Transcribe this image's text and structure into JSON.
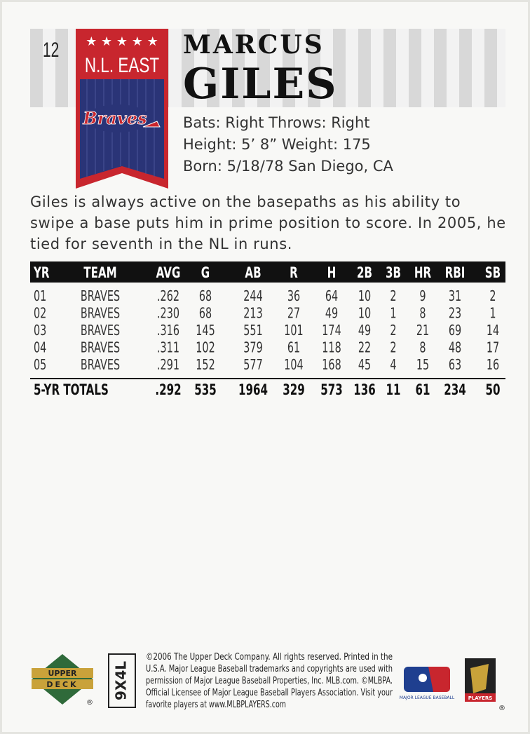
{
  "card_number": "12",
  "division": "N.L. EAST",
  "team_logo": "Braves",
  "player": {
    "first_name": "MARCUS",
    "last_name": "GILES"
  },
  "bio": [
    "Bats: Right  Throws: Right",
    "Height: 5’ 8” Weight: 175",
    "Born: 5/18/78 San Diego, CA"
  ],
  "blurb": "Giles is always active on the basepaths as his ability to swipe a base puts him in prime position to score. In 2005, he tied for seventh in the NL in runs.",
  "stats": {
    "headers": [
      "YR",
      "TEAM",
      "AVG",
      "G",
      "AB",
      "R",
      "H",
      "2B",
      "3B",
      "HR",
      "RBI",
      "SB"
    ],
    "rows": [
      [
        "01",
        "BRAVES",
        ".262",
        "68",
        "244",
        "36",
        "64",
        "10",
        "2",
        "9",
        "31",
        "2"
      ],
      [
        "02",
        "BRAVES",
        ".230",
        "68",
        "213",
        "27",
        "49",
        "10",
        "1",
        "8",
        "23",
        "1"
      ],
      [
        "03",
        "BRAVES",
        ".316",
        "145",
        "551",
        "101",
        "174",
        "49",
        "2",
        "21",
        "69",
        "14"
      ],
      [
        "04",
        "BRAVES",
        ".311",
        "102",
        "379",
        "61",
        "118",
        "22",
        "2",
        "8",
        "48",
        "17"
      ],
      [
        "05",
        "BRAVES",
        ".291",
        "152",
        "577",
        "104",
        "168",
        "45",
        "4",
        "15",
        "63",
        "16"
      ]
    ],
    "totals_label": "5-YR TOTALS",
    "totals": [
      ".292",
      "535",
      "1964",
      "329",
      "573",
      "136",
      "11",
      "61",
      "234",
      "50"
    ]
  },
  "footer": {
    "brand": [
      "UPPER",
      "DECK"
    ],
    "code": "9X4L",
    "legal": [
      "©2006 The Upper Deck Company. All rights reserved. Printed in the",
      "U.S.A. Major League Baseball trademarks and copyrights are used with",
      "permission of Major League Baseball Properties, Inc. MLB.com. ©MLBPA.",
      "Official Licensee of Major League Baseball Players Association. Visit your",
      "favorite players at www.MLBPLAYERS.com"
    ],
    "mlb": "MAJOR LEAGUE BASEBALL",
    "players": "PLAYERS"
  }
}
